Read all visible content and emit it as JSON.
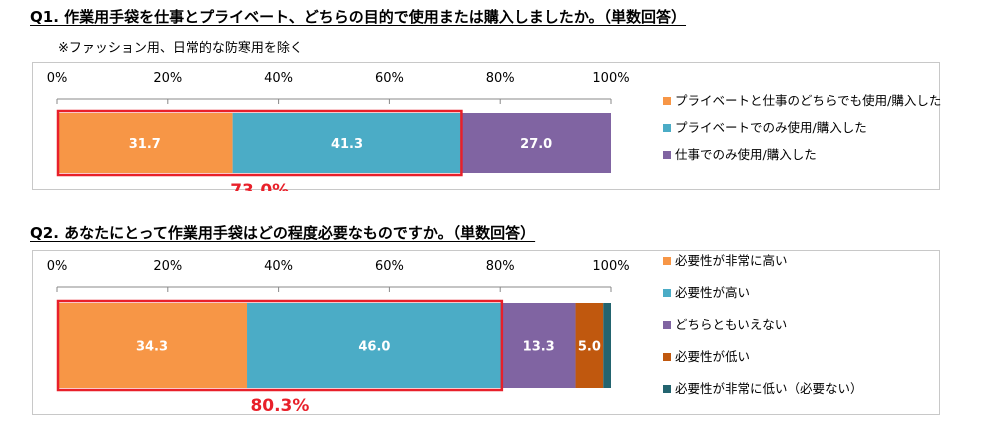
{
  "q1": {
    "title": "Q1. 作業用手袋を仕事とプライベート、どちらの目的で使用または購入しましたか。（単数回答）",
    "note": "※ファッション用、日常的な防寒用を除く"
  },
  "q2": {
    "title": "Q2. あなたにとって作業用手袋はどの程度必要なものですか。（単数回答）"
  },
  "chart_data": [
    {
      "type": "bar",
      "orientation": "horizontal-stacked-100",
      "x_ticks": [
        "0%",
        "20%",
        "40%",
        "60%",
        "80%",
        "100%"
      ],
      "xlim": [
        0,
        100
      ],
      "series": [
        {
          "name": "プライベートと仕事のどちらでも使用/購入した",
          "values": [
            31.7
          ],
          "label": "31.7",
          "color": "#f79646"
        },
        {
          "name": "プライベートでのみ使用/購入した",
          "values": [
            41.3
          ],
          "label": "41.3",
          "color": "#4bacc6"
        },
        {
          "name": "仕事でのみ使用/購入した",
          "values": [
            27.0
          ],
          "label": "27.0",
          "color": "#8064a2"
        }
      ],
      "highlight": {
        "label": "73.0%",
        "covers_series": 2,
        "color": "#e8202a"
      },
      "legend_position": "right"
    },
    {
      "type": "bar",
      "orientation": "horizontal-stacked-100",
      "x_ticks": [
        "0%",
        "20%",
        "40%",
        "60%",
        "80%",
        "100%"
      ],
      "xlim": [
        0,
        100
      ],
      "series": [
        {
          "name": "必要性が非常に高い",
          "values": [
            34.3
          ],
          "label": "34.3",
          "color": "#f79646"
        },
        {
          "name": "必要性が高い",
          "values": [
            46.0
          ],
          "label": "46.0",
          "color": "#4bacc6"
        },
        {
          "name": "どちらともいえない",
          "values": [
            13.3
          ],
          "label": "13.3",
          "color": "#8064a2"
        },
        {
          "name": "必要性が低い",
          "values": [
            5.0
          ],
          "label": "5.0",
          "color": "#c0580e"
        },
        {
          "name": "必要性が非常に低い（必要ない）",
          "values": [
            1.4
          ],
          "label": "",
          "color": "#23646f"
        }
      ],
      "highlight": {
        "label": "80.3%",
        "covers_series": 2,
        "color": "#e8202a"
      },
      "legend_position": "right"
    }
  ]
}
